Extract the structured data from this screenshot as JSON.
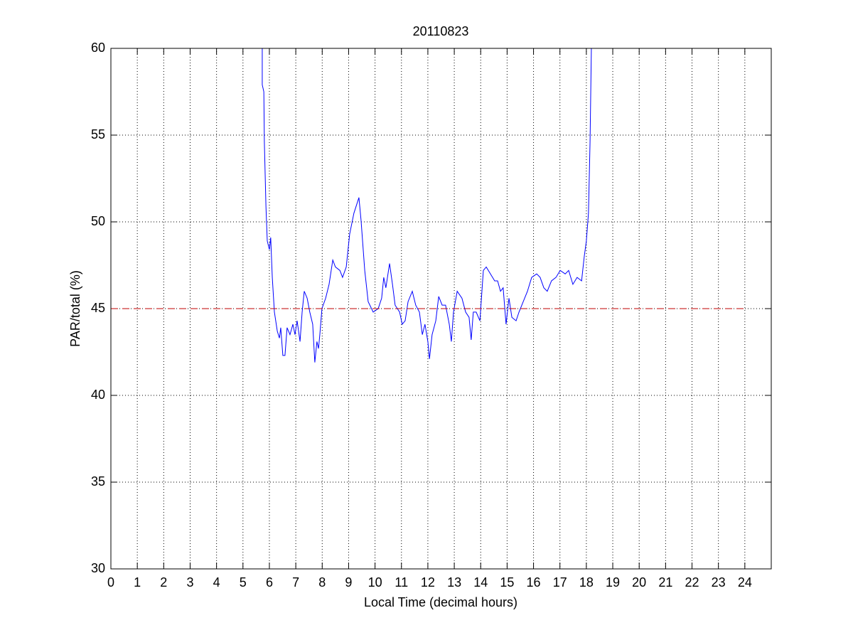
{
  "chart_data": {
    "type": "line",
    "title": "20110823",
    "x_label": "Local Time (decimal hours)",
    "y_label": "PAR/total (%)",
    "xlim": [
      0,
      25
    ],
    "ylim": [
      30,
      60
    ],
    "xticks": [
      0,
      1,
      2,
      3,
      4,
      5,
      6,
      7,
      8,
      9,
      10,
      11,
      12,
      13,
      14,
      15,
      16,
      17,
      18,
      19,
      20,
      21,
      22,
      23,
      24
    ],
    "yticks": [
      30,
      35,
      40,
      45,
      50,
      55,
      60
    ],
    "grid": true,
    "series": [
      {
        "color": "#0000ff",
        "dash": false,
        "x": [
          5.73,
          5.73,
          5.79,
          5.81,
          5.87,
          5.92,
          6.0,
          6.05,
          6.11,
          6.19,
          6.3,
          6.38,
          6.43,
          6.51,
          6.59,
          6.67,
          6.78,
          6.89,
          6.97,
          7.05,
          7.16,
          7.24,
          7.32,
          7.43,
          7.53,
          7.64,
          7.72,
          7.8,
          7.86,
          7.91,
          7.99,
          8.13,
          8.26,
          8.4,
          8.5,
          8.67,
          8.77,
          8.91,
          9.04,
          9.2,
          9.39,
          9.47,
          9.61,
          9.74,
          9.93,
          10.12,
          10.25,
          10.33,
          10.41,
          10.55,
          10.66,
          10.76,
          10.93,
          11.03,
          11.14,
          11.25,
          11.41,
          11.54,
          11.68,
          11.79,
          11.89,
          12.0,
          12.06,
          12.16,
          12.3,
          12.41,
          12.54,
          12.67,
          12.81,
          12.89,
          12.97,
          13.11,
          13.29,
          13.43,
          13.56,
          13.64,
          13.72,
          13.83,
          13.97,
          14.1,
          14.21,
          14.37,
          14.53,
          14.64,
          14.75,
          14.85,
          14.96,
          15.07,
          15.18,
          15.34,
          15.45,
          15.61,
          15.77,
          15.93,
          16.12,
          16.25,
          16.39,
          16.52,
          16.68,
          16.85,
          17.01,
          17.2,
          17.33,
          17.49,
          17.65,
          17.82,
          17.92,
          18.0,
          18.08,
          18.14,
          18.19
        ],
        "values": [
          60,
          57.9,
          57.5,
          54.6,
          50.9,
          48.9,
          48.4,
          49.1,
          46.8,
          44.8,
          43.7,
          43.3,
          43.9,
          42.3,
          42.3,
          43.9,
          43.5,
          44.1,
          43.5,
          44.3,
          43.1,
          44.8,
          46.0,
          45.6,
          44.8,
          44.1,
          41.9,
          43.1,
          42.7,
          43.5,
          45.0,
          45.6,
          46.4,
          47.8,
          47.4,
          47.2,
          46.8,
          47.4,
          49.3,
          50.5,
          51.4,
          50.1,
          47.2,
          45.4,
          44.8,
          45.0,
          45.6,
          46.8,
          46.2,
          47.6,
          46.4,
          45.2,
          44.8,
          44.1,
          44.3,
          45.4,
          46.0,
          45.2,
          44.8,
          43.5,
          44.1,
          43.1,
          42.1,
          43.5,
          44.3,
          45.7,
          45.2,
          45.2,
          44.1,
          43.1,
          44.8,
          46.0,
          45.6,
          44.8,
          44.5,
          43.2,
          44.8,
          44.8,
          44.3,
          47.2,
          47.4,
          47.0,
          46.6,
          46.6,
          46.0,
          46.2,
          44.1,
          45.6,
          44.5,
          44.3,
          44.8,
          45.4,
          46.0,
          46.8,
          47.0,
          46.8,
          46.2,
          46.0,
          46.6,
          46.8,
          47.2,
          47.0,
          47.2,
          46.4,
          46.8,
          46.6,
          48.0,
          48.9,
          50.5,
          54.6,
          60
        ]
      },
      {
        "color": "#c00000",
        "dash": true,
        "x": [
          0,
          24
        ],
        "values": [
          45,
          45
        ]
      }
    ]
  }
}
